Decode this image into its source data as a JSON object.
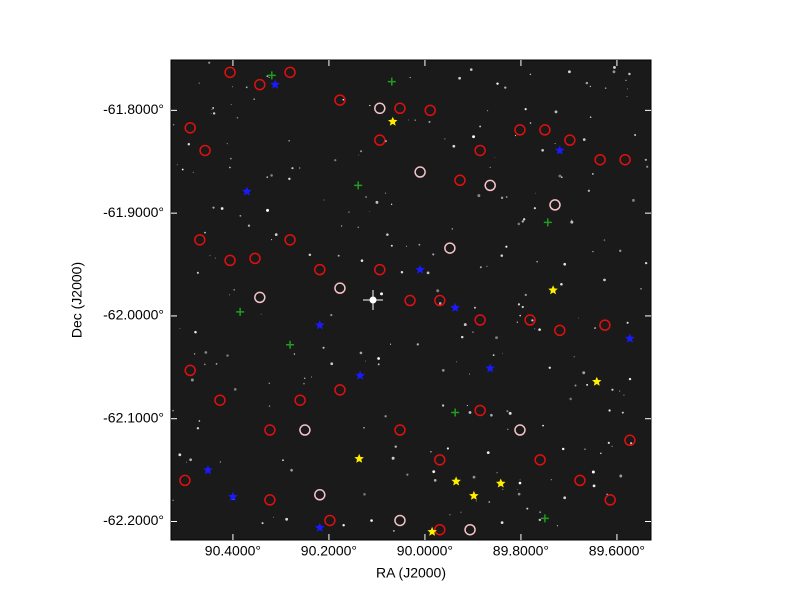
{
  "chart_data": {
    "type": "scatter",
    "xlabel": "RA (J2000)",
    "ylabel": "Dec (J2000)",
    "xlim": [
      90.529,
      89.529
    ],
    "ylim": [
      -62.218,
      -61.751
    ],
    "xticks": [
      {
        "value": 90.4,
        "label": "90.4000°"
      },
      {
        "value": 90.2,
        "label": "90.2000°"
      },
      {
        "value": 90.0,
        "label": "90.0000°"
      },
      {
        "value": 89.8,
        "label": "89.8000°"
      },
      {
        "value": 89.6,
        "label": "89.6000°"
      }
    ],
    "yticks": [
      {
        "value": -61.8,
        "label": "-61.8000°"
      },
      {
        "value": -61.9,
        "label": "-61.9000°"
      },
      {
        "value": -62.0,
        "label": "-62.0000°"
      },
      {
        "value": -62.1,
        "label": "-62.1000°"
      },
      {
        "value": -62.2,
        "label": "-62.2000°"
      }
    ],
    "background": "#1a1a1a",
    "series": [
      {
        "color": "#e01010",
        "marker": "circle",
        "x": [
          90.489,
          90.458,
          90.406,
          90.344,
          90.281,
          90.177,
          90.094,
          90.052,
          89.989,
          89.927,
          89.885,
          89.802,
          89.75,
          89.698,
          89.635,
          89.583,
          90.469,
          90.406,
          90.354,
          90.281,
          90.219,
          90.094,
          90.031,
          89.969,
          89.885,
          89.781,
          89.719,
          89.625,
          90.489,
          90.427,
          90.323,
          90.26,
          90.177,
          90.052,
          89.969,
          89.885,
          89.76,
          89.677,
          89.614,
          90.323,
          90.198,
          89.969,
          89.573,
          90.5
        ],
        "values": [
          -61.817,
          -61.839,
          -61.763,
          -61.775,
          -61.763,
          -61.79,
          -61.829,
          -61.798,
          -61.8,
          -61.868,
          -61.839,
          -61.819,
          -61.819,
          -61.829,
          -61.848,
          -61.848,
          -61.926,
          -61.946,
          -61.944,
          -61.926,
          -61.955,
          -61.955,
          -61.985,
          -61.985,
          -62.004,
          -62.004,
          -62.014,
          -62.009,
          -62.053,
          -62.082,
          -62.111,
          -62.082,
          -62.072,
          -62.111,
          -62.14,
          -62.092,
          -62.14,
          -62.16,
          -62.179,
          -62.179,
          -62.199,
          -62.208,
          -62.121,
          -62.16
        ]
      },
      {
        "color": "#f4c2c8",
        "marker": "circle",
        "x": [
          90.094,
          90.01,
          89.864,
          89.729,
          90.177,
          89.948,
          90.25,
          90.219,
          90.052,
          89.802,
          89.906,
          90.344
        ],
        "values": [
          -61.798,
          -61.86,
          -61.873,
          -61.892,
          -61.973,
          -61.934,
          -62.111,
          -62.174,
          -62.199,
          -62.111,
          -62.208,
          -61.982
        ]
      },
      {
        "color": "#1a1aff",
        "marker": "star",
        "x": [
          90.312,
          90.371,
          90.219,
          89.937,
          89.719,
          90.452,
          90.4,
          90.219,
          90.01,
          89.573,
          90.135,
          89.864
        ],
        "values": [
          -61.775,
          -61.879,
          -62.009,
          -61.992,
          -61.839,
          -62.15,
          -62.176,
          -62.206,
          -61.955,
          -62.022,
          -62.058,
          -62.051
        ]
      },
      {
        "color": "#1f9e1f",
        "marker": "cross",
        "x": [
          90.319,
          90.139,
          90.385,
          90.069,
          89.744,
          89.937,
          90.281,
          89.75
        ],
        "values": [
          -61.766,
          -61.873,
          -61.996,
          -61.772,
          -61.909,
          -62.094,
          -62.028,
          -62.197
        ]
      },
      {
        "color": "#ffee00",
        "marker": "star",
        "x": [
          90.067,
          89.733,
          89.642,
          90.137,
          89.935,
          89.842,
          89.898,
          89.985
        ],
        "values": [
          -61.811,
          -61.975,
          -62.064,
          -62.139,
          -62.161,
          -62.163,
          -62.175,
          -62.21
        ]
      }
    ]
  }
}
